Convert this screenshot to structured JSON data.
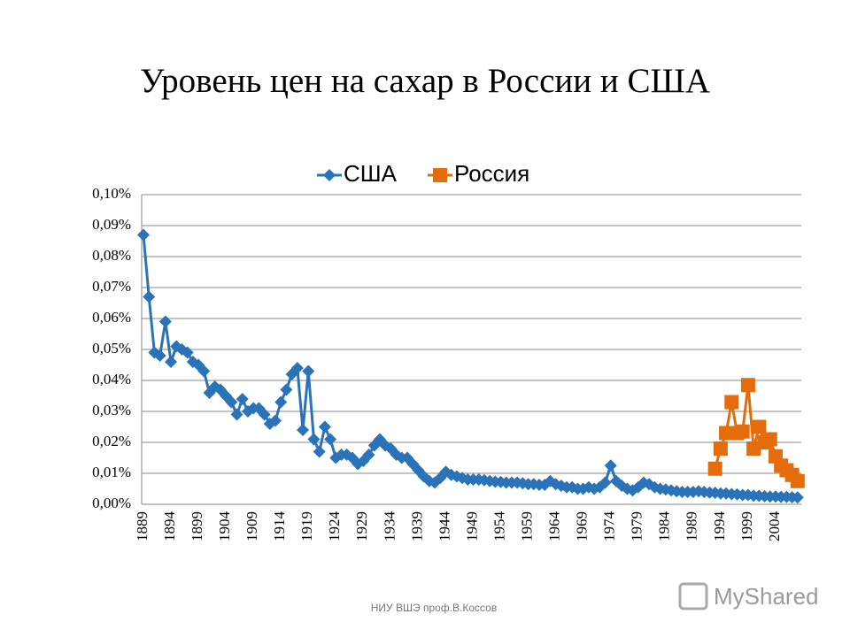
{
  "chart_data": {
    "type": "line",
    "title": "Уровень цен на сахар в России и США",
    "categories": [
      "1889",
      null,
      null,
      null,
      null,
      "1894",
      null,
      null,
      null,
      null,
      "1899",
      null,
      null,
      null,
      null,
      "1904",
      null,
      null,
      null,
      null,
      "1909",
      null,
      null,
      null,
      null,
      "1914",
      null,
      null,
      null,
      null,
      "1919",
      null,
      null,
      null,
      null,
      "1924",
      null,
      null,
      null,
      null,
      "1929",
      null,
      null,
      null,
      null,
      "1934",
      null,
      null,
      null,
      null,
      "1939",
      null,
      null,
      null,
      null,
      "1944",
      null,
      null,
      null,
      null,
      "1949",
      null,
      null,
      null,
      null,
      "1954",
      null,
      null,
      null,
      null,
      "1959",
      null,
      null,
      null,
      null,
      "1964",
      null,
      null,
      null,
      null,
      "1969",
      null,
      null,
      null,
      null,
      "1974",
      null,
      null,
      null,
      null,
      "1979",
      null,
      null,
      null,
      null,
      "1984",
      null,
      null,
      null,
      null,
      "1989",
      null,
      null,
      null,
      null,
      "1994",
      null,
      null,
      null,
      null,
      "1999",
      null,
      null,
      null,
      null,
      "2004",
      null,
      null,
      null,
      null
    ],
    "series": [
      {
        "name": "США",
        "color": "#2a73b8",
        "marker": "diamond",
        "values": [
          0.087,
          0.067,
          0.049,
          0.048,
          0.059,
          0.046,
          0.051,
          0.05,
          0.049,
          0.046,
          0.045,
          0.043,
          0.036,
          0.038,
          0.037,
          0.035,
          0.033,
          0.029,
          0.034,
          0.03,
          0.031,
          0.031,
          0.029,
          0.026,
          0.027,
          0.033,
          0.037,
          0.042,
          0.044,
          0.024,
          0.043,
          0.021,
          0.017,
          0.025,
          0.021,
          0.015,
          0.016,
          0.016,
          0.015,
          0.013,
          0.014,
          0.016,
          0.019,
          0.021,
          0.019,
          0.018,
          0.016,
          0.015,
          0.015,
          0.013,
          0.011,
          0.009,
          0.0075,
          0.007,
          0.0085,
          0.0105,
          0.0095,
          0.009,
          0.0085,
          0.008,
          0.008,
          0.008,
          0.0078,
          0.0075,
          0.0073,
          0.0072,
          0.007,
          0.007,
          0.007,
          0.0068,
          0.0065,
          0.0065,
          0.0063,
          0.0063,
          0.0075,
          0.0065,
          0.006,
          0.0055,
          0.0055,
          0.005,
          0.005,
          0.0055,
          0.005,
          0.0055,
          0.007,
          0.0125,
          0.0075,
          0.006,
          0.005,
          0.0045,
          0.0055,
          0.007,
          0.0065,
          0.0055,
          0.005,
          0.0048,
          0.0045,
          0.0042,
          0.004,
          0.004,
          0.004,
          0.0042,
          0.004,
          0.0038,
          0.0037,
          0.0035,
          0.0035,
          0.0033,
          0.0032,
          0.003,
          0.003,
          0.0028,
          0.0027,
          0.0026,
          0.0025,
          0.0025,
          0.0024,
          0.0024,
          0.0023,
          0.0022
        ]
      },
      {
        "name": "Россия",
        "color": "#e46c0a",
        "marker": "square",
        "values": [
          null,
          null,
          null,
          null,
          null,
          null,
          null,
          null,
          null,
          null,
          null,
          null,
          null,
          null,
          null,
          null,
          null,
          null,
          null,
          null,
          null,
          null,
          null,
          null,
          null,
          null,
          null,
          null,
          null,
          null,
          null,
          null,
          null,
          null,
          null,
          null,
          null,
          null,
          null,
          null,
          null,
          null,
          null,
          null,
          null,
          null,
          null,
          null,
          null,
          null,
          null,
          null,
          null,
          null,
          null,
          null,
          null,
          null,
          null,
          null,
          null,
          null,
          null,
          null,
          null,
          null,
          null,
          null,
          null,
          null,
          null,
          null,
          null,
          null,
          null,
          null,
          null,
          null,
          null,
          null,
          null,
          null,
          null,
          null,
          null,
          null,
          null,
          null,
          null,
          null,
          null,
          null,
          null,
          null,
          null,
          null,
          null,
          null,
          null,
          null,
          null,
          null,
          null,
          null,
          0.0115,
          0.018,
          0.023,
          0.033,
          0.023,
          0.0235,
          0.0385,
          0.018,
          0.025,
          0.02,
          0.021,
          0.0155,
          0.0125,
          0.011,
          0.0095,
          0.0075
        ]
      }
    ],
    "ylim": [
      0,
      0.1
    ],
    "yticks": [
      {
        "value": 0,
        "label": "0,00%"
      },
      {
        "value": 0.01,
        "label": "0,01%"
      },
      {
        "value": 0.02,
        "label": "0,02%"
      },
      {
        "value": 0.03,
        "label": "0,03%"
      },
      {
        "value": 0.04,
        "label": "0,04%"
      },
      {
        "value": 0.05,
        "label": "0,05%"
      },
      {
        "value": 0.06,
        "label": "0,06%"
      },
      {
        "value": 0.07,
        "label": "0,07%"
      },
      {
        "value": 0.08,
        "label": "0,08%"
      },
      {
        "value": 0.09,
        "label": "0,09%"
      },
      {
        "value": 0.1,
        "label": "0,10%"
      }
    ],
    "grid": true,
    "legend": "top"
  },
  "footer": "НИУ ВШЭ проф.В.Коссов",
  "watermark": "MyShared"
}
